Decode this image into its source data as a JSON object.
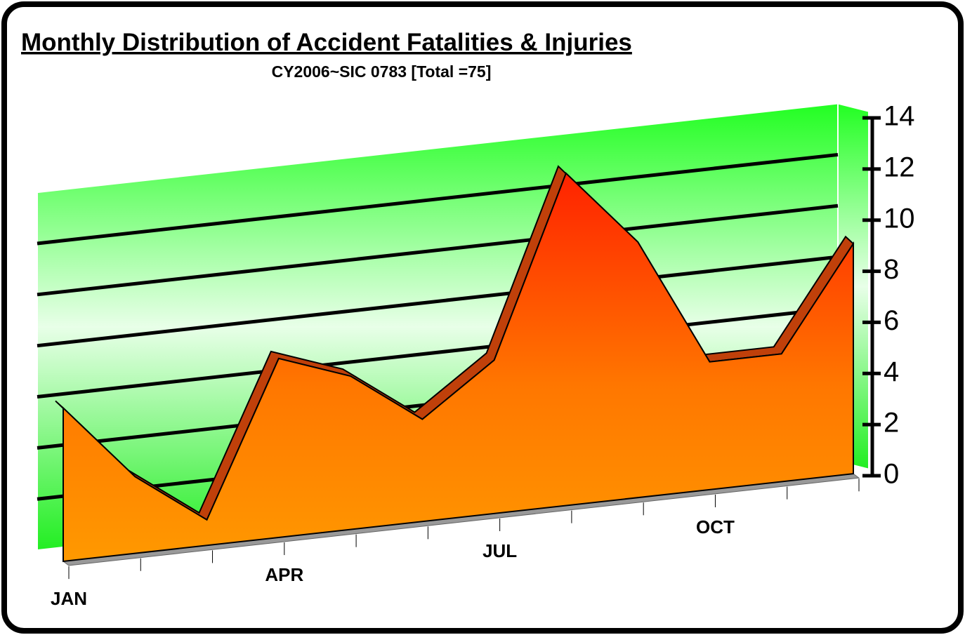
{
  "chart_data": {
    "type": "area",
    "title": "Monthly Distribution of Accident Fatalities & Injuries",
    "subtitle": "CY2006~SIC 0783 [Total =75]",
    "categories": [
      "JAN",
      null,
      null,
      "APR",
      null,
      null,
      "JUL",
      null,
      null,
      "OCT",
      null,
      null
    ],
    "values": [
      6,
      3,
      1,
      7,
      6,
      4,
      6,
      13,
      10,
      5,
      5,
      9
    ],
    "color": "#ff8c00",
    "ylim": [
      0,
      14
    ],
    "yticks": [
      0,
      2,
      4,
      6,
      8,
      10,
      12,
      14
    ],
    "grid": true
  }
}
